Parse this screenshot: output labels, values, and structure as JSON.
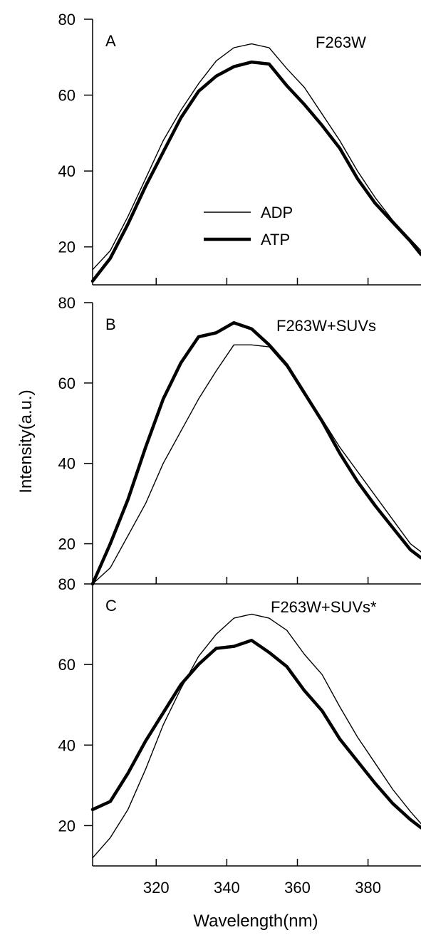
{
  "chart_data": [
    {
      "type": "line",
      "panel": "A",
      "annotation": "F263W",
      "xlim": [
        302,
        395
      ],
      "ylim": [
        10,
        80
      ],
      "yticks": [
        20,
        40,
        60,
        80
      ],
      "xticks": [
        320,
        340,
        360,
        380
      ],
      "legend": {
        "entries": [
          "ADP",
          "ATP"
        ],
        "placement": "center"
      },
      "series": [
        {
          "name": "ADP",
          "stroke": "thin",
          "x": [
            302,
            307,
            312,
            317,
            322,
            327,
            332,
            337,
            342,
            347,
            352,
            357,
            362,
            367,
            372,
            377,
            382,
            387,
            392,
            395
          ],
          "y": [
            14,
            19,
            28,
            38,
            48,
            56,
            63,
            69,
            72.5,
            73.5,
            72.5,
            67,
            62,
            55,
            48,
            40,
            33,
            27,
            22,
            19
          ]
        },
        {
          "name": "ATP",
          "stroke": "thick",
          "x": [
            302,
            307,
            312,
            317,
            322,
            327,
            332,
            337,
            342,
            347,
            352,
            357,
            362,
            367,
            372,
            377,
            382,
            387,
            392,
            395
          ],
          "y": [
            11,
            17,
            26,
            36,
            45,
            54,
            61,
            65,
            67.5,
            68.7,
            68.2,
            62.5,
            57.5,
            52,
            46,
            38,
            31.5,
            26.5,
            21.5,
            18
          ]
        }
      ]
    },
    {
      "type": "line",
      "panel": "B",
      "annotation": "F263W+SUVs",
      "xlim": [
        302,
        395
      ],
      "ylim": [
        10,
        80
      ],
      "yticks": [
        20,
        40,
        60,
        80
      ],
      "xticks": [
        320,
        340,
        360,
        380
      ],
      "series": [
        {
          "name": "ADP",
          "stroke": "thin",
          "x": [
            302,
            307,
            312,
            317,
            322,
            327,
            332,
            337,
            342,
            347,
            352,
            357,
            362,
            367,
            372,
            377,
            382,
            387,
            392,
            395
          ],
          "y": [
            10,
            14,
            22,
            30,
            40,
            48,
            56,
            63,
            69.5,
            69.5,
            69,
            64,
            57,
            51,
            44,
            38,
            32,
            26,
            20,
            18
          ]
        },
        {
          "name": "ATP",
          "stroke": "thick",
          "x": [
            302,
            307,
            312,
            317,
            322,
            327,
            332,
            337,
            342,
            347,
            352,
            357,
            362,
            367,
            372,
            377,
            382,
            387,
            392,
            395
          ],
          "y": [
            10,
            20,
            31,
            44,
            56,
            65,
            71.5,
            72.5,
            75,
            73.5,
            69.5,
            64.5,
            57.5,
            50.5,
            42.5,
            35.5,
            29.5,
            24,
            18.5,
            16.5
          ]
        }
      ]
    },
    {
      "type": "line",
      "panel": "C",
      "annotation": "F263W+SUVs*",
      "xlim": [
        302,
        395
      ],
      "ylim": [
        10,
        80
      ],
      "yticks": [
        20,
        40,
        60,
        80
      ],
      "xticks": [
        320,
        340,
        360,
        380
      ],
      "series": [
        {
          "name": "ADP",
          "stroke": "thin",
          "x": [
            302,
            307,
            312,
            317,
            322,
            327,
            332,
            337,
            342,
            347,
            352,
            357,
            362,
            367,
            372,
            377,
            382,
            387,
            392,
            395
          ],
          "y": [
            12,
            17,
            24,
            34,
            45,
            54,
            62,
            67.5,
            71.5,
            72.5,
            71.5,
            68.5,
            62.5,
            57.5,
            49.5,
            42,
            35.5,
            29,
            23.5,
            20.5
          ]
        },
        {
          "name": "ATP",
          "stroke": "thick",
          "x": [
            302,
            307,
            312,
            317,
            322,
            327,
            332,
            337,
            342,
            347,
            352,
            357,
            362,
            367,
            372,
            377,
            382,
            387,
            392,
            395
          ],
          "y": [
            24,
            26,
            33,
            41,
            48,
            55,
            60,
            64,
            64.5,
            66,
            63,
            59.5,
            53.5,
            48.5,
            41.5,
            36,
            30.5,
            25.5,
            21.5,
            19.5
          ]
        }
      ]
    }
  ],
  "axes": {
    "ylabel": "Intensity(a.u.)",
    "xlabel": "Wavelength(nm)"
  }
}
